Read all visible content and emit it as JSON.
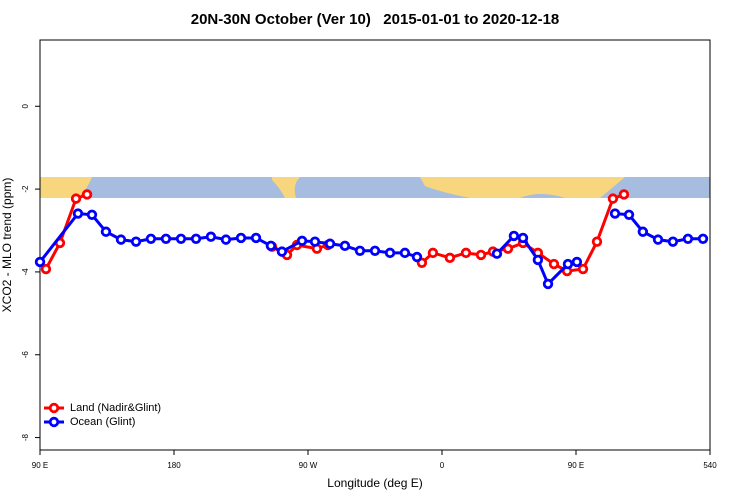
{
  "chart_data": {
    "type": "line",
    "title": "20N-30N October (Ver 10)   2015-01-01 to 2020-12-18",
    "x_label": "Longitude (deg E)",
    "y_label": "XCO2 - MLO trend (ppm)",
    "xlim": [
      90,
      540
    ],
    "xticks": [
      {
        "value": 90,
        "label": "90 E"
      },
      180,
      {
        "value": 270,
        "label": "90 W"
      },
      {
        "value": 360,
        "label": "0"
      },
      {
        "value": 450,
        "label": "90 E"
      },
      540
    ],
    "ylim": [
      -8.3,
      1.6
    ],
    "yticks": [
      0,
      -2,
      -4,
      -6,
      -8
    ],
    "legend": "bottom-left",
    "series": [
      {
        "name": "Land (Nadir&Glint)",
        "color": "#ff0000",
        "x": [
          94.0,
          103.4,
          114.2,
          121.6,
          null,
          245.8,
          255.9,
          262.6,
          276.0,
          283.4,
          null,
          346.5,
          353.9,
          365.3,
          376.1,
          386.2,
          394.2,
          404.3,
          414.4,
          424.4,
          435.2,
          444.0,
          454.7,
          464.1,
          474.8,
          482.2
        ],
        "values": [
          -3.93,
          -3.3,
          -2.23,
          -2.13,
          null,
          -3.39,
          -3.59,
          -3.35,
          -3.44,
          -3.35,
          null,
          -3.78,
          -3.54,
          -3.66,
          -3.54,
          -3.59,
          -3.51,
          -3.44,
          -3.3,
          -3.54,
          -3.81,
          -3.98,
          -3.93,
          -3.27,
          -2.23,
          -2.13
        ]
      },
      {
        "name": "Ocean (Glint)",
        "color": "#0000ff",
        "x": [
          90.0,
          115.5,
          124.9,
          134.3,
          144.4,
          154.5,
          164.5,
          174.6,
          184.7,
          194.8,
          204.8,
          214.9,
          225.0,
          235.1,
          245.1,
          252.5,
          266.0,
          274.7,
          284.8,
          294.8,
          304.9,
          315.0,
          325.1,
          335.1,
          343.2,
          null,
          396.9,
          408.3,
          414.4,
          424.4,
          431.2,
          444.6,
          450.6,
          null,
          476.2,
          485.6,
          494.9,
          505.1,
          515.1,
          525.2,
          535.3
        ],
        "values": [
          -3.76,
          -2.59,
          -2.62,
          -3.03,
          -3.22,
          -3.27,
          -3.2,
          -3.2,
          -3.2,
          -3.2,
          -3.15,
          -3.22,
          -3.18,
          -3.18,
          -3.37,
          -3.51,
          -3.25,
          -3.27,
          -3.32,
          -3.37,
          -3.49,
          -3.49,
          -3.54,
          -3.54,
          -3.64,
          null,
          -3.56,
          -3.13,
          -3.18,
          -3.71,
          -4.29,
          -3.81,
          -3.76,
          null,
          -2.59,
          -2.62,
          -3.03,
          -3.22,
          -3.27,
          -3.2,
          -3.2
        ]
      }
    ]
  }
}
